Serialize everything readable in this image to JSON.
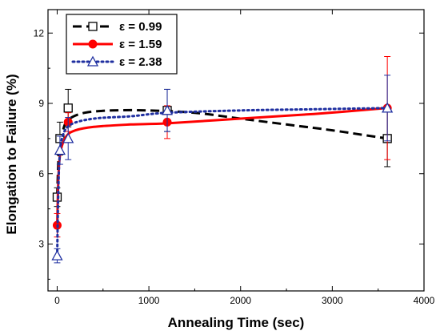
{
  "chart_data": {
    "type": "line",
    "xlabel": "Annealing Time (sec)",
    "ylabel": "Elongation to Failure (%)",
    "xlim": [
      -100,
      4000
    ],
    "ylim": [
      1,
      13
    ],
    "xticks": [
      0,
      1000,
      2000,
      3000,
      4000
    ],
    "yticks": [
      3,
      6,
      9,
      12
    ],
    "grid": false,
    "legend_position": "top-left",
    "series": [
      {
        "name": "ε = 0.99",
        "color": "#000000",
        "line_style": "dashed",
        "marker": "square-open",
        "points": [
          {
            "x": 0,
            "y": 5.0,
            "err": 0.4
          },
          {
            "x": 30,
            "y": 7.5,
            "err": 0.7
          },
          {
            "x": 120,
            "y": 8.8,
            "err": 0.8
          },
          {
            "x": 1200,
            "y": 8.7,
            "err": 0.9
          },
          {
            "x": 3600,
            "y": 7.5,
            "err": 1.2
          }
        ],
        "curve": [
          [
            0,
            5.0
          ],
          [
            20,
            7.0
          ],
          [
            60,
            7.8
          ],
          [
            120,
            8.3
          ],
          [
            300,
            8.6
          ],
          [
            600,
            8.7
          ],
          [
            1000,
            8.7
          ],
          [
            1500,
            8.6
          ],
          [
            2000,
            8.35
          ],
          [
            2500,
            8.1
          ],
          [
            3000,
            7.85
          ],
          [
            3600,
            7.5
          ]
        ]
      },
      {
        "name": "ε = 1.59",
        "color": "#ff0000",
        "line_style": "solid",
        "marker": "circle-filled",
        "points": [
          {
            "x": 0,
            "y": 3.8,
            "err": 0.5
          },
          {
            "x": 120,
            "y": 8.2,
            "err": 0.4
          },
          {
            "x": 1200,
            "y": 8.2,
            "err": 0.7
          },
          {
            "x": 3600,
            "y": 8.8,
            "err": 2.2
          }
        ],
        "curve": [
          [
            0,
            3.8
          ],
          [
            15,
            6.0
          ],
          [
            40,
            7.0
          ],
          [
            100,
            7.6
          ],
          [
            200,
            7.85
          ],
          [
            400,
            8.0
          ],
          [
            800,
            8.1
          ],
          [
            1200,
            8.15
          ],
          [
            2000,
            8.35
          ],
          [
            2800,
            8.55
          ],
          [
            3600,
            8.8
          ]
        ]
      },
      {
        "name": "ε = 2.38",
        "color": "#1f2fa0",
        "line_style": "dotted",
        "marker": "triangle-open",
        "points": [
          {
            "x": 0,
            "y": 2.5,
            "err": 0.3
          },
          {
            "x": 30,
            "y": 7.0,
            "err": 0.6
          },
          {
            "x": 120,
            "y": 7.5,
            "err": 0.9
          },
          {
            "x": 1200,
            "y": 8.7,
            "err": 0.9
          },
          {
            "x": 3600,
            "y": 8.8,
            "err": 1.4
          }
        ],
        "curve": [
          [
            0,
            2.5
          ],
          [
            10,
            4.8
          ],
          [
            25,
            6.6
          ],
          [
            60,
            7.6
          ],
          [
            150,
            8.1
          ],
          [
            400,
            8.35
          ],
          [
            800,
            8.45
          ],
          [
            1200,
            8.6
          ],
          [
            2000,
            8.7
          ],
          [
            2800,
            8.75
          ],
          [
            3600,
            8.8
          ]
        ]
      }
    ]
  }
}
